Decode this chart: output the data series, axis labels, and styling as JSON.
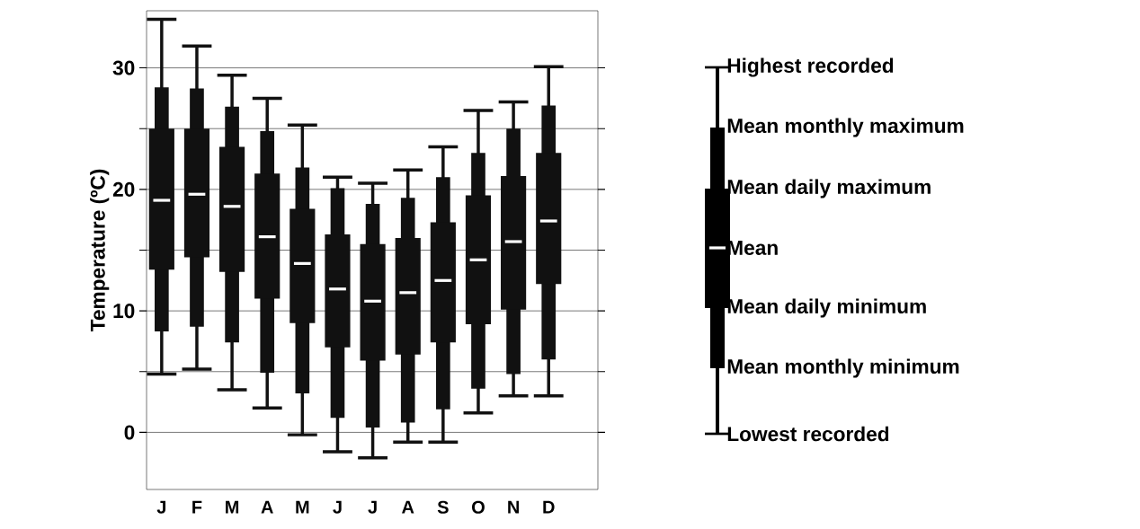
{
  "chart_data": {
    "type": "box",
    "ylabel": "Temperature (ºC)",
    "categories": [
      "J",
      "F",
      "M",
      "A",
      "M",
      "J",
      "J",
      "A",
      "S",
      "O",
      "N",
      "D"
    ],
    "ylim": [
      -4.7,
      34.7
    ],
    "yticks": [
      {
        "value": 0,
        "label": "0"
      },
      {
        "value": 5,
        "label": null
      },
      {
        "value": 10,
        "label": "10"
      },
      {
        "value": 15,
        "label": null
      },
      {
        "value": 20,
        "label": "20"
      },
      {
        "value": 25,
        "label": null
      },
      {
        "value": 30,
        "label": "30"
      }
    ],
    "grid": "y",
    "series": [
      {
        "color": "#111111",
        "boxes": [
          {
            "low": 4.8,
            "q1": 8.3,
            "median": 19.1,
            "q3": 28.4,
            "high": 34.0
          },
          {
            "low": 5.2,
            "q1": 8.7,
            "median": 19.6,
            "q3": 28.3,
            "high": 31.8
          },
          {
            "low": 3.5,
            "q1": 7.4,
            "median": 18.6,
            "q3": 26.8,
            "high": 29.4
          },
          {
            "low": 2.0,
            "q1": 4.9,
            "median": 16.1,
            "q3": 24.8,
            "high": 27.5
          },
          {
            "low": -0.2,
            "q1": 3.2,
            "median": 13.9,
            "q3": 21.8,
            "high": 25.3
          },
          {
            "low": -1.6,
            "q1": 1.2,
            "median": 11.8,
            "q3": 20.1,
            "high": 21.0
          },
          {
            "low": -2.1,
            "q1": 0.4,
            "median": 10.8,
            "q3": 18.8,
            "high": 20.5
          },
          {
            "low": -0.8,
            "q1": 0.8,
            "median": 11.5,
            "q3": 19.3,
            "high": 21.6
          },
          {
            "low": -0.8,
            "q1": 1.9,
            "median": 12.5,
            "q3": 21.0,
            "high": 23.5
          },
          {
            "low": 1.6,
            "q1": 3.6,
            "median": 14.2,
            "q3": 23.0,
            "high": 26.5
          },
          {
            "low": 3.0,
            "q1": 4.8,
            "median": 15.7,
            "q3": 25.0,
            "high": 27.2
          },
          {
            "low": 3.0,
            "q1": 6.0,
            "median": 17.4,
            "q3": 26.9,
            "high": 30.1
          }
        ]
      },
      {
        "type": "bar",
        "color": "#111111",
        "base": [
          13.4,
          14.4,
          13.2,
          11.0,
          9.0,
          7.0,
          5.9,
          6.4,
          7.4,
          8.9,
          10.1,
          12.2
        ],
        "values": [
          11.6,
          10.6,
          10.3,
          10.3,
          9.4,
          9.3,
          9.6,
          9.6,
          9.9,
          10.6,
          11.0,
          10.8
        ]
      }
    ],
    "annotations": [
      "Highest recorded",
      "Mean monthly maximum",
      "Mean daily maximum",
      "Mean",
      "Mean daily minimum",
      "Mean monthly minimum",
      "Lowest recorded"
    ]
  }
}
